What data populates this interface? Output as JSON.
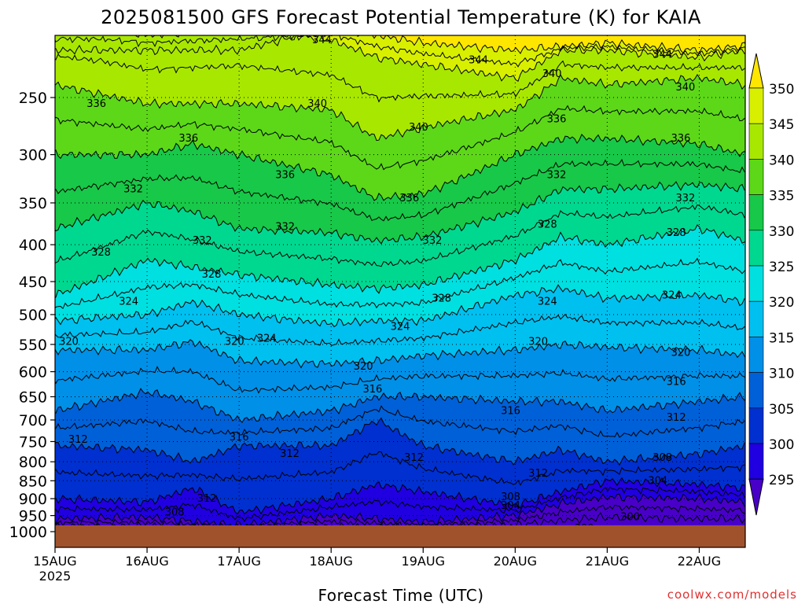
{
  "chart_data": {
    "type": "heatmap",
    "title": "2025081500 GFS Forecast Potential Temperature (K) for KAIA",
    "xlabel": "Forecast Time (UTC)",
    "ylabel": "",
    "source": "coolwx.com/models",
    "x_ticks": [
      "15AUG",
      "16AUG",
      "17AUG",
      "18AUG",
      "19AUG",
      "20AUG",
      "21AUG",
      "22AUG"
    ],
    "x_year": "2025",
    "x_range_days": [
      0,
      7.5
    ],
    "y_ticks": [
      "250",
      "300",
      "350",
      "400",
      "450",
      "500",
      "550",
      "600",
      "650",
      "700",
      "750",
      "800",
      "850",
      "900",
      "950",
      "1000"
    ],
    "y_range_hpa": [
      200,
      1000
    ],
    "y_scale": "log",
    "colorbar_ticks": [
      "350",
      "345",
      "340",
      "335",
      "330",
      "325",
      "320",
      "315",
      "310",
      "305",
      "300",
      "295"
    ],
    "colorbar_colors": [
      "#ffe600",
      "#d8f000",
      "#a8e800",
      "#5cd818",
      "#18c848",
      "#00d890",
      "#00e0e0",
      "#00c0f0",
      "#0090e8",
      "#0060d8",
      "#0030d0",
      "#2000e0",
      "#4800c8"
    ],
    "ground_color": "#a0522d",
    "series": [
      {
        "theta": 350,
        "p": [
          [
            0,
            215
          ],
          [
            1,
            215
          ],
          [
            2,
            215
          ],
          [
            3,
            200
          ],
          [
            3.5,
            205
          ],
          [
            4,
            210
          ],
          [
            5,
            215
          ],
          [
            6,
            210
          ],
          [
            7,
            215
          ],
          [
            7.5,
            212
          ]
        ]
      },
      {
        "theta": 345,
        "p": [
          [
            0,
            200
          ],
          [
            0.5,
            200
          ],
          [
            1,
            205
          ],
          [
            2,
            200
          ],
          [
            3,
            208
          ],
          [
            3.5,
            220
          ],
          [
            4,
            225
          ],
          [
            5,
            235
          ],
          [
            5.5,
            215
          ],
          [
            6,
            215
          ],
          [
            7,
            220
          ],
          [
            7.5,
            215
          ]
        ]
      },
      {
        "theta": 340,
        "p": [
          [
            0,
            240
          ],
          [
            1,
            255
          ],
          [
            2,
            255
          ],
          [
            3,
            260
          ],
          [
            3.5,
            285
          ],
          [
            4,
            275
          ],
          [
            5,
            260
          ],
          [
            5.5,
            235
          ],
          [
            6,
            240
          ],
          [
            7,
            235
          ],
          [
            7.5,
            240
          ]
        ]
      },
      {
        "theta": 336,
        "p": [
          [
            0,
            300
          ],
          [
            1,
            300
          ],
          [
            1.5,
            290
          ],
          [
            2,
            300
          ],
          [
            3,
            320
          ],
          [
            3.5,
            345
          ],
          [
            4,
            340
          ],
          [
            5,
            300
          ],
          [
            5.5,
            285
          ],
          [
            6,
            285
          ],
          [
            7,
            290
          ],
          [
            7.5,
            300
          ]
        ]
      },
      {
        "theta": 332,
        "p": [
          [
            0,
            380
          ],
          [
            1,
            350
          ],
          [
            1.5,
            360
          ],
          [
            2,
            380
          ],
          [
            3,
            385
          ],
          [
            3.5,
            395
          ],
          [
            4,
            390
          ],
          [
            5,
            360
          ],
          [
            5.5,
            335
          ],
          [
            6,
            335
          ],
          [
            7,
            330
          ],
          [
            7.5,
            335
          ]
        ]
      },
      {
        "theta": 328,
        "p": [
          [
            0,
            470
          ],
          [
            1,
            420
          ],
          [
            1.5,
            430
          ],
          [
            2,
            440
          ],
          [
            3,
            455
          ],
          [
            3.5,
            460
          ],
          [
            4,
            455
          ],
          [
            5,
            420
          ],
          [
            5.5,
            390
          ],
          [
            6,
            400
          ],
          [
            7,
            380
          ],
          [
            7.5,
            395
          ]
        ]
      },
      {
        "theta": 324,
        "p": [
          [
            0,
            510
          ],
          [
            1,
            500
          ],
          [
            1.5,
            480
          ],
          [
            2,
            500
          ],
          [
            3,
            515
          ],
          [
            3.5,
            510
          ],
          [
            4,
            510
          ],
          [
            5,
            470
          ],
          [
            5.5,
            460
          ],
          [
            6,
            475
          ],
          [
            7,
            470
          ],
          [
            7.5,
            480
          ]
        ]
      },
      {
        "theta": 320,
        "p": [
          [
            0,
            560
          ],
          [
            1,
            560
          ],
          [
            1.5,
            545
          ],
          [
            2,
            580
          ],
          [
            3,
            585
          ],
          [
            3.5,
            580
          ],
          [
            4,
            570
          ],
          [
            5,
            560
          ],
          [
            5.5,
            550
          ],
          [
            6,
            555
          ],
          [
            7,
            560
          ],
          [
            7.5,
            570
          ]
        ]
      },
      {
        "theta": 316,
        "p": [
          [
            0,
            680
          ],
          [
            1,
            640
          ],
          [
            1.5,
            660
          ],
          [
            2,
            700
          ],
          [
            3,
            680
          ],
          [
            3.5,
            650
          ],
          [
            4,
            650
          ],
          [
            5,
            660
          ],
          [
            5.5,
            660
          ],
          [
            6,
            680
          ],
          [
            7,
            660
          ],
          [
            7.5,
            650
          ]
        ]
      },
      {
        "theta": 312,
        "p": [
          [
            0,
            760
          ],
          [
            1,
            770
          ],
          [
            1.5,
            800
          ],
          [
            2,
            760
          ],
          [
            3,
            760
          ],
          [
            3.5,
            700
          ],
          [
            4,
            760
          ],
          [
            5,
            800
          ],
          [
            5.5,
            770
          ],
          [
            6,
            800
          ],
          [
            7,
            780
          ],
          [
            7.5,
            760
          ]
        ]
      },
      {
        "theta": 308,
        "p": [
          [
            0,
            900
          ],
          [
            1,
            910
          ],
          [
            1.5,
            870
          ],
          [
            2,
            940
          ],
          [
            3,
            900
          ],
          [
            3.5,
            860
          ],
          [
            4,
            880
          ],
          [
            5,
            920
          ],
          [
            5.5,
            880
          ],
          [
            6,
            850
          ],
          [
            7,
            860
          ],
          [
            7.5,
            870
          ]
        ]
      },
      {
        "theta": 304,
        "p": [
          [
            0,
            960
          ],
          [
            1,
            955
          ],
          [
            2,
            980
          ],
          [
            3,
            950
          ],
          [
            4,
            970
          ],
          [
            5,
            950
          ],
          [
            5.5,
            915
          ],
          [
            6,
            895
          ],
          [
            7,
            900
          ],
          [
            7.5,
            910
          ]
        ]
      },
      {
        "theta": 300,
        "p": [
          [
            0,
            985
          ],
          [
            1,
            985
          ],
          [
            2,
            990
          ],
          [
            3,
            985
          ],
          [
            4,
            990
          ],
          [
            5,
            980
          ],
          [
            5.5,
            965
          ],
          [
            6,
            955
          ],
          [
            7,
            960
          ],
          [
            7.5,
            960
          ]
        ]
      }
    ],
    "contour_labels": [
      {
        "text": "344",
        "d": 2.9,
        "p": 208
      },
      {
        "text": "344",
        "d": 4.6,
        "p": 222
      },
      {
        "text": "344",
        "d": 6.6,
        "p": 218
      },
      {
        "text": "340",
        "d": 5.4,
        "p": 232
      },
      {
        "text": "340",
        "d": 6.85,
        "p": 242
      },
      {
        "text": "340",
        "d": 2.85,
        "p": 255
      },
      {
        "text": "340",
        "d": 3.95,
        "p": 275
      },
      {
        "text": "336",
        "d": 0.45,
        "p": 255
      },
      {
        "text": "336",
        "d": 5.45,
        "p": 268
      },
      {
        "text": "336",
        "d": 6.8,
        "p": 285
      },
      {
        "text": "336",
        "d": 1.45,
        "p": 285
      },
      {
        "text": "336",
        "d": 2.5,
        "p": 320
      },
      {
        "text": "336",
        "d": 3.85,
        "p": 345
      },
      {
        "text": "332",
        "d": 5.45,
        "p": 320
      },
      {
        "text": "332",
        "d": 0.85,
        "p": 335
      },
      {
        "text": "332",
        "d": 6.85,
        "p": 345
      },
      {
        "text": "332",
        "d": 2.5,
        "p": 378
      },
      {
        "text": "332",
        "d": 1.6,
        "p": 395
      },
      {
        "text": "332",
        "d": 4.1,
        "p": 395
      },
      {
        "text": "328",
        "d": 5.35,
        "p": 375
      },
      {
        "text": "328",
        "d": 6.75,
        "p": 385
      },
      {
        "text": "328",
        "d": 0.5,
        "p": 410
      },
      {
        "text": "328",
        "d": 1.7,
        "p": 440
      },
      {
        "text": "328",
        "d": 4.2,
        "p": 475
      },
      {
        "text": "324",
        "d": 5.35,
        "p": 480
      },
      {
        "text": "324",
        "d": 6.7,
        "p": 470
      },
      {
        "text": "324",
        "d": 0.8,
        "p": 480
      },
      {
        "text": "324",
        "d": 3.75,
        "p": 520
      },
      {
        "text": "324",
        "d": 2.3,
        "p": 540
      },
      {
        "text": "320",
        "d": 5.25,
        "p": 545
      },
      {
        "text": "320",
        "d": 6.8,
        "p": 565
      },
      {
        "text": "320",
        "d": 0.15,
        "p": 545
      },
      {
        "text": "320",
        "d": 1.95,
        "p": 545
      },
      {
        "text": "320",
        "d": 3.35,
        "p": 590
      },
      {
        "text": "316",
        "d": 6.75,
        "p": 620
      },
      {
        "text": "316",
        "d": 3.45,
        "p": 635
      },
      {
        "text": "316",
        "d": 4.95,
        "p": 680
      },
      {
        "text": "316",
        "d": 2.0,
        "p": 740
      },
      {
        "text": "312",
        "d": 6.75,
        "p": 695
      },
      {
        "text": "312",
        "d": 0.25,
        "p": 745
      },
      {
        "text": "312",
        "d": 2.55,
        "p": 780
      },
      {
        "text": "312",
        "d": 3.9,
        "p": 790
      },
      {
        "text": "312",
        "d": 5.25,
        "p": 830
      },
      {
        "text": "312",
        "d": 1.65,
        "p": 900
      },
      {
        "text": "308",
        "d": 6.6,
        "p": 790
      },
      {
        "text": "308",
        "d": 4.95,
        "p": 895
      },
      {
        "text": "308",
        "d": 1.3,
        "p": 940
      },
      {
        "text": "304",
        "d": 6.55,
        "p": 850
      },
      {
        "text": "304",
        "d": 4.95,
        "p": 920
      },
      {
        "text": "300",
        "d": 6.25,
        "p": 955
      },
      {
        "text": "300",
        "d": 5.75,
        "p": 990
      }
    ]
  }
}
